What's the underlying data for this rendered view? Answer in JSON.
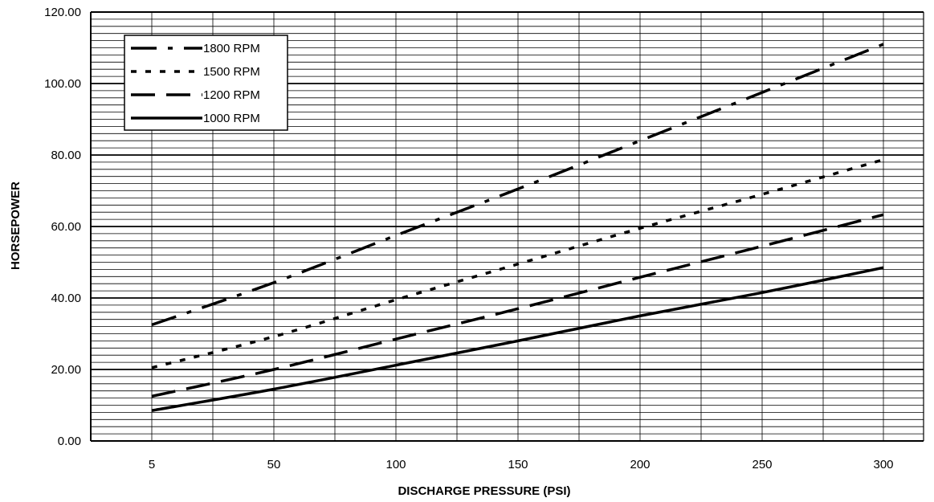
{
  "chart_data": {
    "type": "line",
    "title": "",
    "xlabel": "DISCHARGE PRESSURE (PSI)",
    "ylabel": "HORSEPOWER",
    "x": [
      5,
      50,
      100,
      150,
      200,
      250,
      300
    ],
    "x_tick_labels": [
      "5",
      "50",
      "100",
      "150",
      "200",
      "250",
      "300"
    ],
    "y_tick_labels": [
      "0.00",
      "20.00",
      "40.00",
      "60.00",
      "80.00",
      "100.00",
      "120.00"
    ],
    "ylim": [
      0,
      120
    ],
    "grid": true,
    "legend_position": "top-left",
    "series": [
      {
        "name": "1800 RPM",
        "style": "dash-dot",
        "color": "#000000",
        "values": [
          32.5,
          44.3,
          57.5,
          70.5,
          84,
          97.5,
          111
        ]
      },
      {
        "name": "1500 RPM",
        "style": "dotted",
        "color": "#000000",
        "values": [
          20.5,
          29.2,
          39.5,
          49.5,
          59.5,
          69,
          78.7
        ]
      },
      {
        "name": "1200 RPM",
        "style": "dashed",
        "color": "#000000",
        "values": [
          12.5,
          20,
          28.5,
          37,
          45.8,
          54.5,
          63.3
        ]
      },
      {
        "name": "1000 RPM",
        "style": "solid",
        "color": "#000000",
        "values": [
          8.5,
          14.5,
          21.2,
          28,
          35,
          41.5,
          48.5
        ]
      }
    ]
  }
}
